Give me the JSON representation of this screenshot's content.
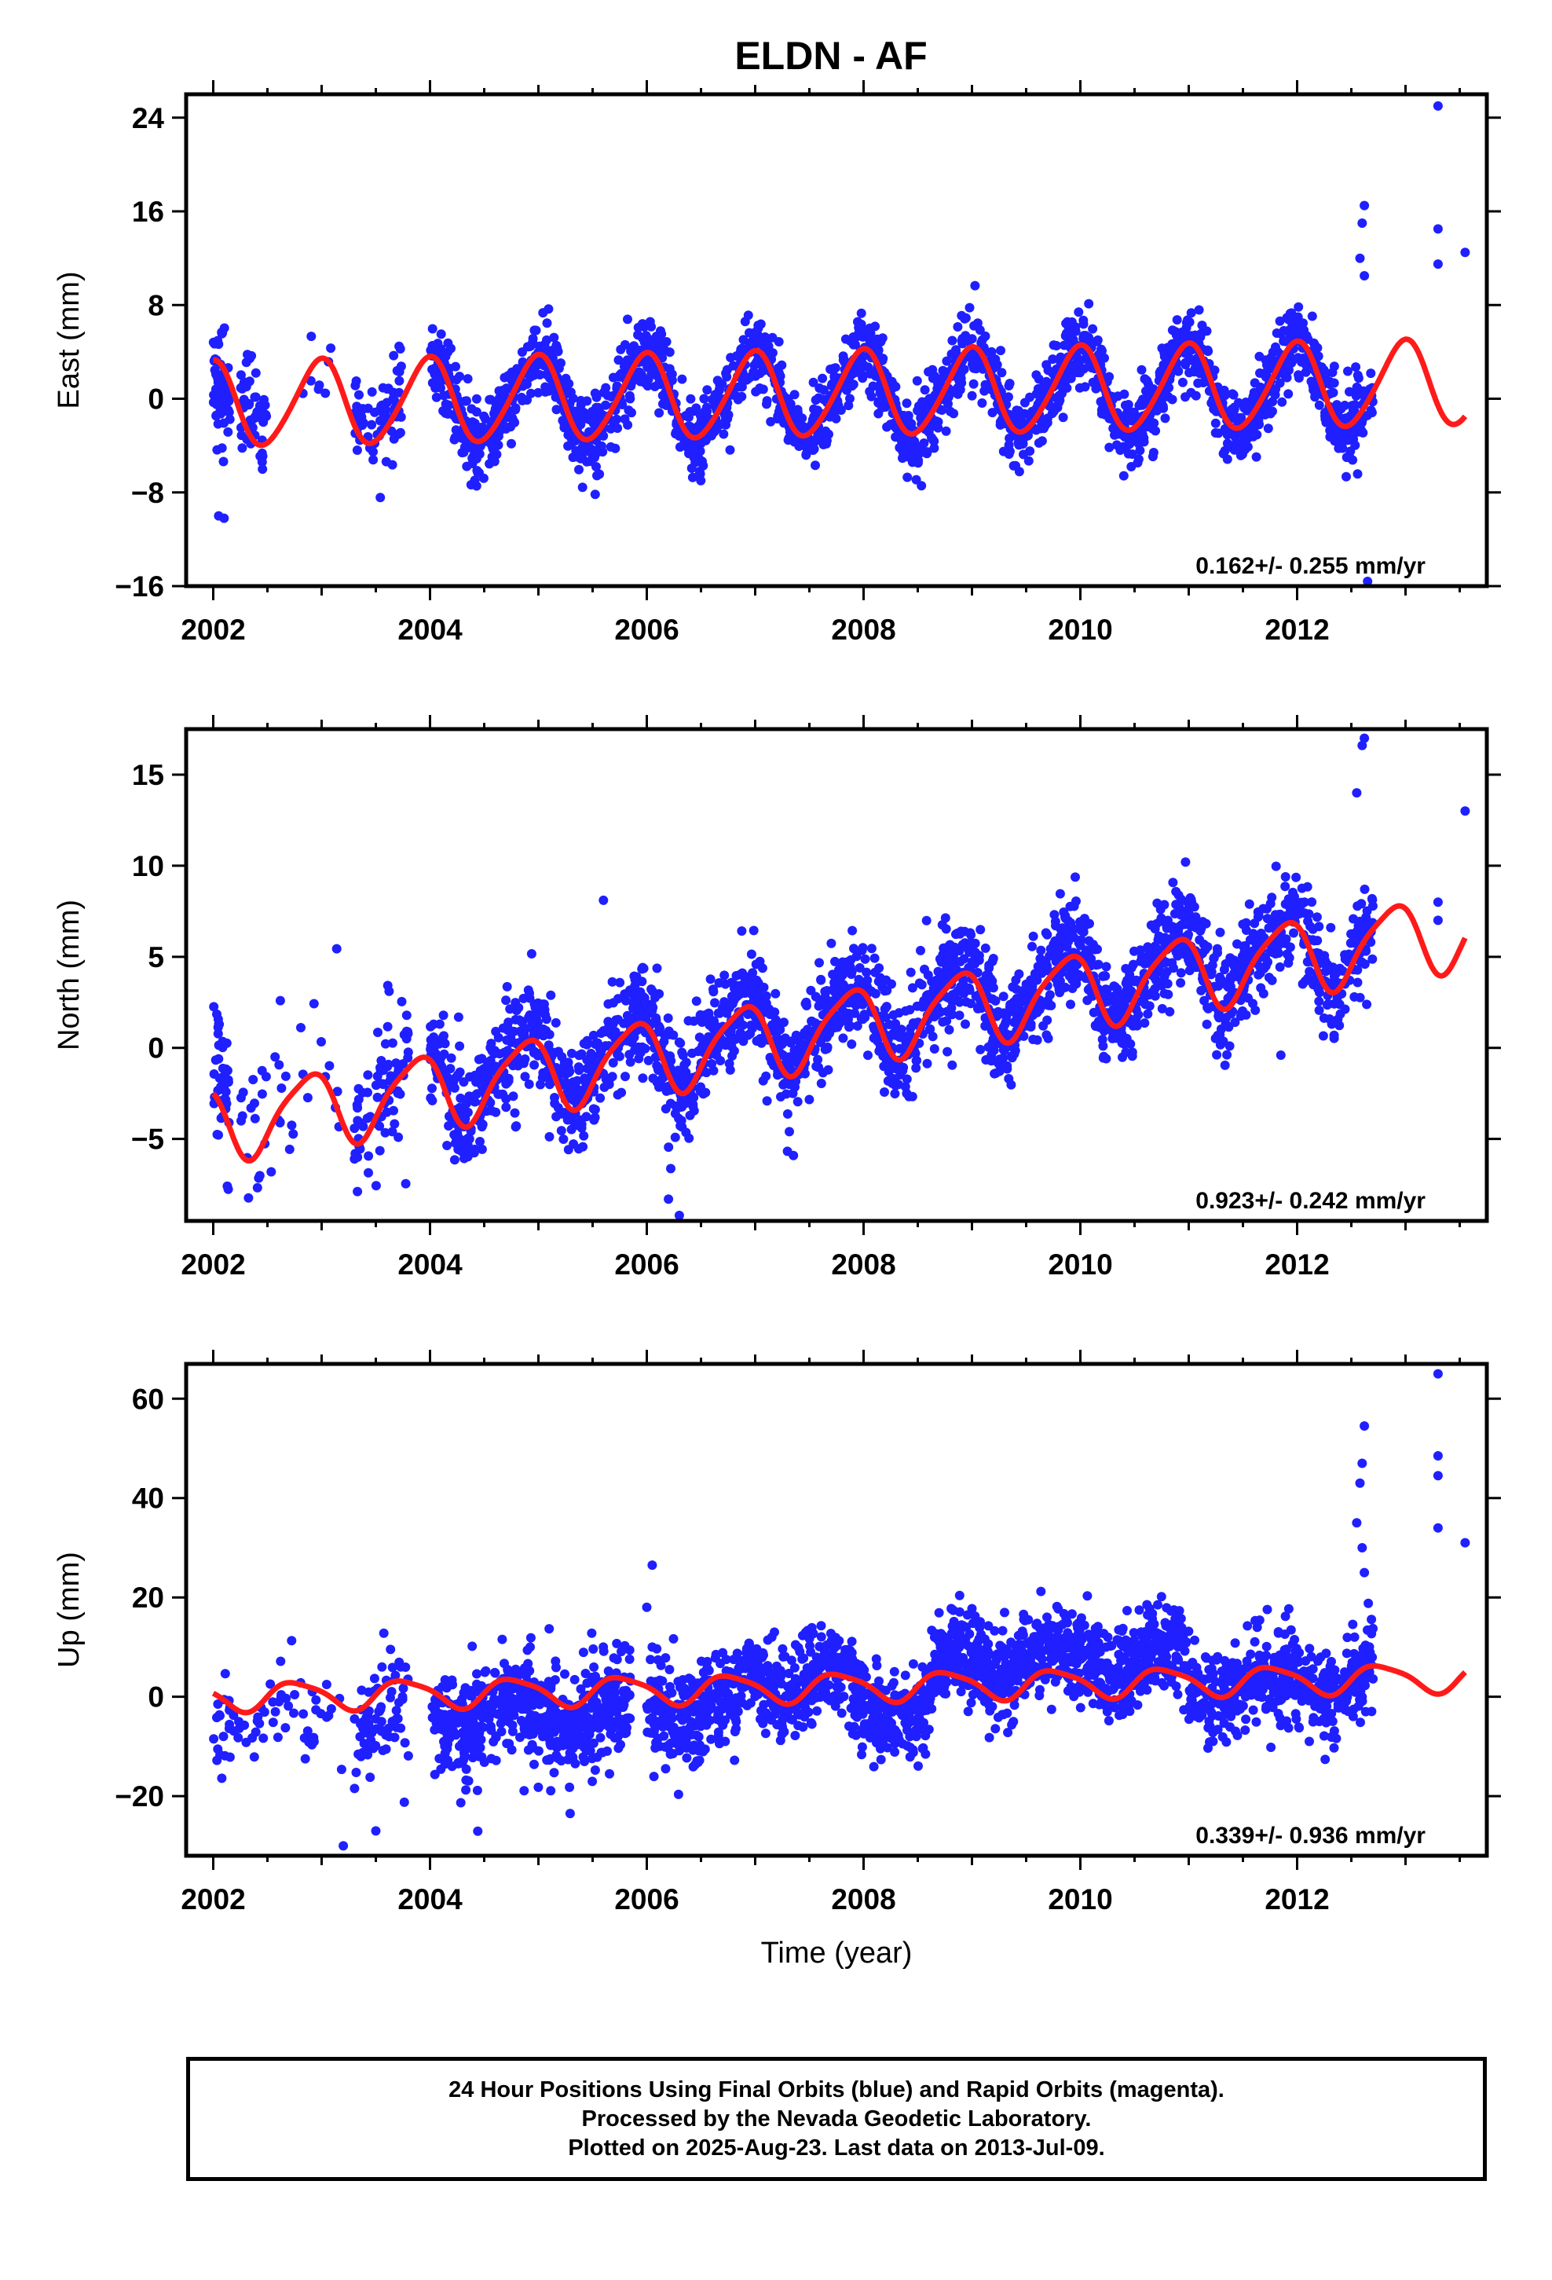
{
  "title": "ELDN - AF",
  "colors": {
    "data": "#1f1fff",
    "model": "#ff1a1a",
    "axis": "#000000"
  },
  "chart_data": [
    {
      "type": "scatter",
      "panel": "east",
      "ylabel": "East (mm)",
      "xlim": [
        2001.75,
        2013.75
      ],
      "ylim": [
        -16,
        26
      ],
      "xticks": [
        2002,
        2004,
        2006,
        2008,
        2010,
        2012
      ],
      "xtick_labels": [
        "2002",
        "2004",
        "2006",
        "2008",
        "2010",
        "2012"
      ],
      "yticks": [
        -16,
        -8,
        0,
        8,
        16,
        24
      ],
      "ytick_labels": [
        "−16",
        "−8",
        "0",
        "8",
        "16",
        "24"
      ],
      "rate_text": "0.162+/- 0.255 mm/yr",
      "model": {
        "offset": -0.5,
        "rate": 0.162,
        "annual_amp": 3.6,
        "annual_phase": 1.7,
        "semi_amp": 0.4,
        "semi_phase": 0.6
      },
      "data_segments": [
        {
          "t0": 2002.0,
          "t1": 2002.16,
          "n": 70,
          "bias": -3.5,
          "noise": 2.2
        },
        {
          "t0": 2002.25,
          "t1": 2002.5,
          "n": 60,
          "bias": 4.0,
          "noise": 2.2
        },
        {
          "t0": 2002.8,
          "t1": 2003.1,
          "n": 8,
          "bias": -2.0,
          "noise": 2.0
        },
        {
          "t0": 2003.3,
          "t1": 2003.75,
          "n": 70,
          "bias": 1.5,
          "noise": 2.2
        },
        {
          "t0": 2004.0,
          "t1": 2012.7,
          "n": 2300,
          "bias": 0.0,
          "noise": 1.6
        }
      ],
      "outliers": [
        [
          2012.62,
          16.5
        ],
        [
          2012.6,
          15.0
        ],
        [
          2012.58,
          12.0
        ],
        [
          2012.62,
          10.5
        ],
        [
          2013.3,
          25.0
        ],
        [
          2013.3,
          14.5
        ],
        [
          2013.3,
          11.5
        ],
        [
          2013.55,
          12.5
        ],
        [
          2002.05,
          -10.0
        ],
        [
          2002.1,
          -10.2
        ],
        [
          2012.65,
          -15.6
        ]
      ]
    },
    {
      "type": "scatter",
      "panel": "north",
      "ylabel": "North (mm)",
      "xlim": [
        2001.75,
        2013.75
      ],
      "ylim": [
        -9.5,
        17.5
      ],
      "xticks": [
        2002,
        2004,
        2006,
        2008,
        2010,
        2012
      ],
      "xtick_labels": [
        "2002",
        "2004",
        "2006",
        "2008",
        "2010",
        "2012"
      ],
      "yticks": [
        -5,
        0,
        5,
        10,
        15
      ],
      "ytick_labels": [
        "−5",
        "0",
        "5",
        "10",
        "15"
      ],
      "rate_text": "0.923+/- 0.242 mm/yr",
      "model": {
        "offset": -4.2,
        "rate": 0.923,
        "annual_amp": 2.0,
        "annual_phase": 2.4,
        "semi_amp": 0.4,
        "semi_phase": 1.0
      },
      "data_segments": [
        {
          "t0": 2002.0,
          "t1": 2002.15,
          "n": 45,
          "bias": 2.5,
          "noise": 1.8
        },
        {
          "t0": 2002.25,
          "t1": 2003.2,
          "n": 40,
          "bias": 2.5,
          "noise": 2.0
        },
        {
          "t0": 2003.3,
          "t1": 2003.8,
          "n": 80,
          "bias": 1.0,
          "noise": 2.0
        },
        {
          "t0": 2004.0,
          "t1": 2012.7,
          "n": 2300,
          "bias": 0.8,
          "noise": 1.4
        }
      ],
      "outliers": [
        [
          2012.62,
          17.0
        ],
        [
          2012.6,
          16.6
        ],
        [
          2012.55,
          14.0
        ],
        [
          2013.3,
          8.0
        ],
        [
          2013.3,
          7.0
        ],
        [
          2013.55,
          13.0
        ],
        [
          2005.6,
          8.1
        ],
        [
          2006.2,
          -8.3
        ],
        [
          2006.3,
          -9.2
        ],
        [
          2011.85,
          -0.4
        ]
      ]
    },
    {
      "type": "scatter",
      "panel": "up",
      "ylabel": "Up (mm)",
      "xlabel": "Time (year)",
      "xlim": [
        2001.75,
        2013.75
      ],
      "ylim": [
        -32,
        67
      ],
      "xticks": [
        2002,
        2004,
        2006,
        2008,
        2010,
        2012
      ],
      "xtick_labels": [
        "2002",
        "2004",
        "2006",
        "2008",
        "2010",
        "2012"
      ],
      "yticks": [
        -20,
        0,
        20,
        40,
        60
      ],
      "ytick_labels": [
        "−20",
        "0",
        "20",
        "40",
        "60"
      ],
      "rate_text": "0.339+/- 0.936 mm/yr",
      "model": {
        "offset": 0.0,
        "rate": 0.339,
        "annual_amp": 2.8,
        "annual_phase": 3.0,
        "semi_amp": 0.6,
        "semi_phase": 0.5
      },
      "data_segments": [
        {
          "t0": 2002.0,
          "t1": 2003.2,
          "n": 70,
          "bias": -8.0,
          "noise": 5.0
        },
        {
          "t0": 2003.3,
          "t1": 2003.8,
          "n": 80,
          "bias": -10.0,
          "noise": 6.0
        },
        {
          "t0": 2004.0,
          "t1": 2005.85,
          "n": 620,
          "bias": -9.0,
          "noise": 5.0
        },
        {
          "t0": 2006.0,
          "t1": 2006.85,
          "n": 240,
          "bias": -8.0,
          "noise": 5.0
        },
        {
          "t0": 2006.85,
          "t1": 2007.9,
          "n": 320,
          "bias": 2.5,
          "noise": 4.5
        },
        {
          "t0": 2007.9,
          "t1": 2008.62,
          "n": 220,
          "bias": -8.0,
          "noise": 4.5
        },
        {
          "t0": 2008.62,
          "t1": 2011.0,
          "n": 760,
          "bias": 9.0,
          "noise": 4.5
        },
        {
          "t0": 2011.0,
          "t1": 2012.7,
          "n": 480,
          "bias": -1.0,
          "noise": 4.5
        }
      ],
      "outliers": [
        [
          2012.62,
          54.5
        ],
        [
          2012.6,
          47.0
        ],
        [
          2012.58,
          43.0
        ],
        [
          2012.55,
          35.0
        ],
        [
          2012.6,
          30.0
        ],
        [
          2012.62,
          25.0
        ],
        [
          2013.3,
          65.0
        ],
        [
          2013.3,
          48.5
        ],
        [
          2013.3,
          44.5
        ],
        [
          2013.3,
          34.0
        ],
        [
          2013.55,
          31.0
        ],
        [
          2006.05,
          26.5
        ],
        [
          2006.0,
          18.0
        ],
        [
          2006.05,
          10.0
        ],
        [
          2003.2,
          -30.0
        ],
        [
          2003.5,
          -27.0
        ]
      ]
    }
  ],
  "caption": {
    "line1": "24 Hour Positions Using Final Orbits (blue) and Rapid Orbits (magenta).",
    "line2": "Processed by the Nevada Geodetic Laboratory.",
    "line3": "Plotted on 2025-Aug-23. Last data on 2013-Jul-09."
  }
}
